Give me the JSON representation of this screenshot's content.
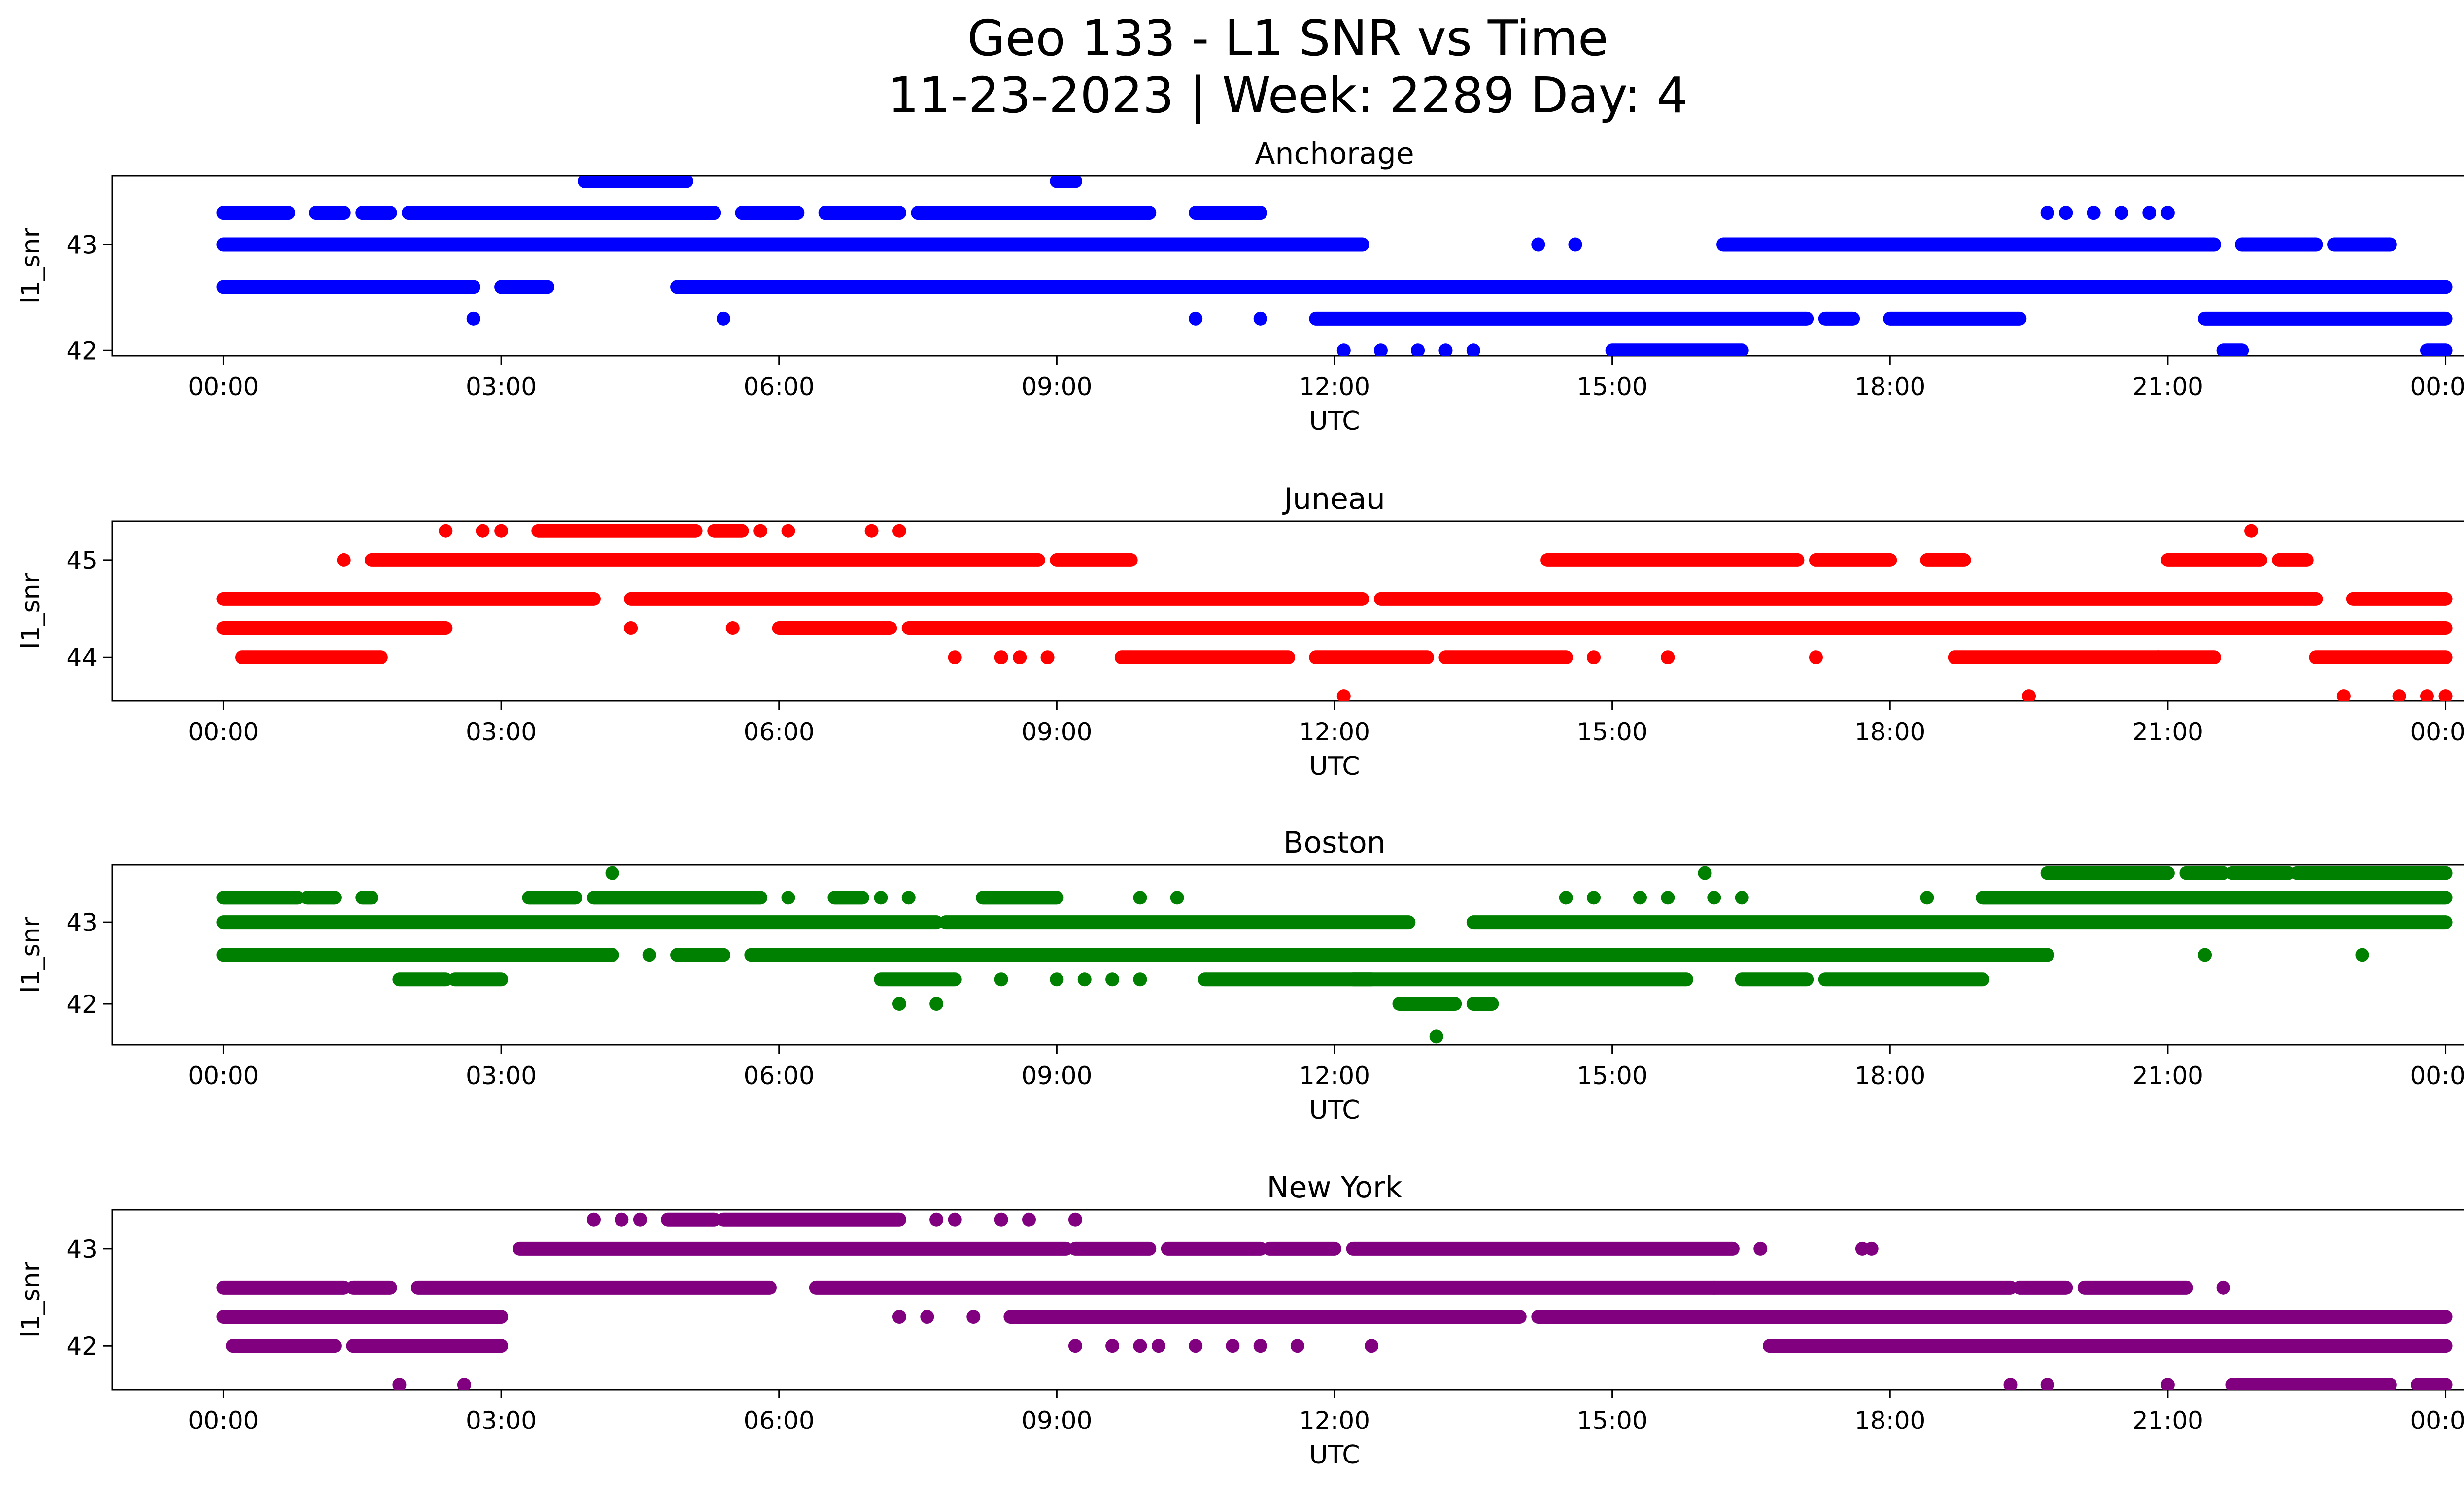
{
  "figure": {
    "title": "Geo 133 - L1 SNR vs Time",
    "subtitle": "11-23-2023 | Week: 2289 Day: 4"
  },
  "chart_data": [
    {
      "type": "scatter",
      "title": "Anchorage",
      "xlabel": "UTC",
      "ylabel": "l1_snr",
      "color": "#0000ff",
      "x_ticks": [
        "00:00",
        "03:00",
        "06:00",
        "09:00",
        "12:00",
        "15:00",
        "18:00",
        "21:00",
        "00:00"
      ],
      "y_ticks": [
        42,
        43
      ],
      "xlim_hours": [
        -1.2,
        25.2
      ],
      "ylim": [
        41.95,
        43.65
      ],
      "levels": [
        {
          "y": 43.3,
          "segments": [
            [
              0,
              0.7
            ],
            [
              1.0,
              1.3
            ],
            [
              1.5,
              1.8
            ],
            [
              2.0,
              5.3
            ],
            [
              5.6,
              6.2
            ],
            [
              6.5,
              7.3
            ],
            [
              7.5,
              10.0
            ],
            [
              10.5,
              11.2
            ]
          ]
        },
        {
          "y": 43.0,
          "segments": [
            [
              0,
              12.3
            ],
            [
              16.2,
              21.5
            ],
            [
              21.8,
              22.6
            ],
            [
              22.8,
              23.4
            ]
          ]
        },
        {
          "y": 42.6,
          "segments": [
            [
              0,
              2.7
            ],
            [
              3.0,
              3.5
            ],
            [
              4.9,
              24.0
            ]
          ]
        },
        {
          "y": 42.3,
          "segments": [
            [
              11.8,
              17.1
            ],
            [
              17.3,
              17.6
            ],
            [
              18.0,
              19.4
            ],
            [
              21.4,
              24.0
            ]
          ]
        },
        {
          "y": 42.0,
          "segments": [
            [
              15.0,
              16.4
            ],
            [
              21.6,
              21.8
            ],
            [
              23.8,
              24.0
            ]
          ]
        },
        {
          "y": 43.6,
          "segments": [
            [
              3.9,
              5.0
            ],
            [
              9.0,
              9.2
            ]
          ]
        }
      ],
      "points": [
        {
          "x": 2.7,
          "y": 42.3
        },
        {
          "x": 5.4,
          "y": 42.3
        },
        {
          "x": 10.5,
          "y": 42.3
        },
        {
          "x": 11.2,
          "y": 42.3
        },
        {
          "x": 12.1,
          "y": 42.0
        },
        {
          "x": 12.5,
          "y": 42.0
        },
        {
          "x": 12.9,
          "y": 42.0
        },
        {
          "x": 13.2,
          "y": 42.0
        },
        {
          "x": 13.5,
          "y": 42.0
        },
        {
          "x": 14.2,
          "y": 43.0
        },
        {
          "x": 14.6,
          "y": 43.0
        },
        {
          "x": 19.7,
          "y": 43.3
        },
        {
          "x": 19.9,
          "y": 43.3
        },
        {
          "x": 20.2,
          "y": 43.3
        },
        {
          "x": 20.5,
          "y": 43.3
        },
        {
          "x": 20.8,
          "y": 43.3
        },
        {
          "x": 21.0,
          "y": 43.3
        }
      ]
    },
    {
      "type": "scatter",
      "title": "Juneau",
      "xlabel": "UTC",
      "ylabel": "l1_snr",
      "color": "#ff0000",
      "x_ticks": [
        "00:00",
        "03:00",
        "06:00",
        "09:00",
        "12:00",
        "15:00",
        "18:00",
        "21:00",
        "00:00"
      ],
      "y_ticks": [
        44,
        45
      ],
      "xlim_hours": [
        -1.2,
        25.2
      ],
      "ylim": [
        43.55,
        45.4
      ],
      "levels": [
        {
          "y": 44.6,
          "segments": [
            [
              0,
              4.0
            ],
            [
              4.4,
              12.3
            ],
            [
              12.5,
              22.6
            ],
            [
              23.0,
              24.0
            ]
          ]
        },
        {
          "y": 44.3,
          "segments": [
            [
              0,
              2.4
            ],
            [
              6.0,
              7.2
            ],
            [
              7.4,
              24.0
            ]
          ]
        },
        {
          "y": 45.0,
          "segments": [
            [
              1.6,
              8.8
            ],
            [
              9.0,
              9.8
            ],
            [
              14.3,
              17.0
            ],
            [
              17.2,
              18.0
            ],
            [
              18.4,
              18.8
            ],
            [
              21.0,
              22.0
            ],
            [
              22.2,
              22.5
            ]
          ]
        },
        {
          "y": 44.0,
          "segments": [
            [
              0.2,
              1.7
            ],
            [
              9.7,
              11.5
            ],
            [
              11.8,
              13.0
            ],
            [
              13.2,
              14.5
            ],
            [
              18.7,
              20.9
            ],
            [
              20.9,
              21.5
            ],
            [
              22.6,
              24.0
            ]
          ]
        },
        {
          "y": 45.3,
          "segments": [
            [
              3.4,
              5.1
            ],
            [
              5.3,
              5.6
            ]
          ]
        }
      ],
      "points": [
        {
          "x": 1.3,
          "y": 45.0
        },
        {
          "x": 2.4,
          "y": 45.3
        },
        {
          "x": 2.8,
          "y": 45.3
        },
        {
          "x": 3.0,
          "y": 45.3
        },
        {
          "x": 5.8,
          "y": 45.3
        },
        {
          "x": 6.1,
          "y": 45.3
        },
        {
          "x": 7.0,
          "y": 45.3
        },
        {
          "x": 7.3,
          "y": 45.3
        },
        {
          "x": 4.4,
          "y": 44.3
        },
        {
          "x": 5.5,
          "y": 44.3
        },
        {
          "x": 7.9,
          "y": 44.0
        },
        {
          "x": 8.4,
          "y": 44.0
        },
        {
          "x": 8.6,
          "y": 44.0
        },
        {
          "x": 8.9,
          "y": 44.0
        },
        {
          "x": 12.1,
          "y": 43.6
        },
        {
          "x": 14.8,
          "y": 44.0
        },
        {
          "x": 15.6,
          "y": 44.0
        },
        {
          "x": 17.2,
          "y": 44.0
        },
        {
          "x": 19.5,
          "y": 43.6
        },
        {
          "x": 21.9,
          "y": 45.3
        },
        {
          "x": 22.9,
          "y": 43.6
        },
        {
          "x": 23.5,
          "y": 43.6
        },
        {
          "x": 23.8,
          "y": 43.6
        },
        {
          "x": 24.0,
          "y": 43.6
        }
      ]
    },
    {
      "type": "scatter",
      "title": "Boston",
      "xlabel": "UTC",
      "ylabel": "l1_snr",
      "color": "#008000",
      "x_ticks": [
        "00:00",
        "03:00",
        "06:00",
        "09:00",
        "12:00",
        "15:00",
        "18:00",
        "21:00",
        "00:00"
      ],
      "y_ticks": [
        42,
        43
      ],
      "xlim_hours": [
        -1.2,
        25.2
      ],
      "ylim": [
        41.5,
        43.7
      ],
      "levels": [
        {
          "y": 43.3,
          "segments": [
            [
              0,
              0.8
            ],
            [
              0.9,
              1.2
            ],
            [
              1.5,
              1.6
            ],
            [
              3.3,
              3.8
            ],
            [
              4.0,
              5.8
            ],
            [
              6.6,
              6.9
            ],
            [
              8.2,
              9.0
            ],
            [
              19.0,
              24.0
            ]
          ]
        },
        {
          "y": 43.0,
          "segments": [
            [
              0,
              7.7
            ],
            [
              7.8,
              12.8
            ],
            [
              13.5,
              24.0
            ]
          ]
        },
        {
          "y": 42.6,
          "segments": [
            [
              0,
              4.2
            ],
            [
              4.9,
              5.4
            ],
            [
              5.7,
              19.7
            ]
          ]
        },
        {
          "y": 42.3,
          "segments": [
            [
              1.9,
              2.4
            ],
            [
              2.5,
              3.0
            ],
            [
              7.1,
              7.9
            ],
            [
              10.6,
              12.4
            ],
            [
              12.2,
              15.8
            ],
            [
              16.4,
              17.1
            ],
            [
              17.3,
              19.0
            ]
          ]
        },
        {
          "y": 43.6,
          "segments": [
            [
              19.7,
              21.0
            ],
            [
              21.2,
              21.6
            ],
            [
              21.7,
              22.3
            ],
            [
              22.4,
              24.0
            ]
          ]
        },
        {
          "y": 42.0,
          "segments": [
            [
              12.7,
              13.3
            ],
            [
              13.5,
              13.7
            ]
          ]
        }
      ],
      "points": [
        {
          "x": 4.2,
          "y": 43.6
        },
        {
          "x": 6.1,
          "y": 43.3
        },
        {
          "x": 7.1,
          "y": 43.3
        },
        {
          "x": 7.4,
          "y": 43.3
        },
        {
          "x": 9.9,
          "y": 43.3
        },
        {
          "x": 10.3,
          "y": 43.3
        },
        {
          "x": 4.6,
          "y": 42.6
        },
        {
          "x": 7.3,
          "y": 42.0
        },
        {
          "x": 7.7,
          "y": 42.0
        },
        {
          "x": 8.4,
          "y": 42.3
        },
        {
          "x": 9.0,
          "y": 42.3
        },
        {
          "x": 9.3,
          "y": 42.3
        },
        {
          "x": 9.6,
          "y": 42.3
        },
        {
          "x": 9.9,
          "y": 42.3
        },
        {
          "x": 13.1,
          "y": 41.6
        },
        {
          "x": 14.5,
          "y": 43.3
        },
        {
          "x": 14.8,
          "y": 43.3
        },
        {
          "x": 15.3,
          "y": 43.3
        },
        {
          "x": 15.6,
          "y": 43.3
        },
        {
          "x": 16.0,
          "y": 43.6
        },
        {
          "x": 16.1,
          "y": 43.3
        },
        {
          "x": 16.4,
          "y": 43.3
        },
        {
          "x": 18.4,
          "y": 43.3
        },
        {
          "x": 21.4,
          "y": 42.6
        },
        {
          "x": 23.1,
          "y": 42.6
        }
      ]
    },
    {
      "type": "scatter",
      "title": "New York",
      "xlabel": "UTC",
      "ylabel": "l1_snr",
      "color": "#800080",
      "x_ticks": [
        "00:00",
        "03:00",
        "06:00",
        "09:00",
        "12:00",
        "15:00",
        "18:00",
        "21:00",
        "00:00"
      ],
      "y_ticks": [
        42,
        43
      ],
      "xlim_hours": [
        -1.2,
        25.2
      ],
      "ylim": [
        41.55,
        43.4
      ],
      "levels": [
        {
          "y": 42.6,
          "segments": [
            [
              0,
              1.3
            ],
            [
              1.4,
              1.8
            ],
            [
              2.1,
              5.9
            ],
            [
              6.4,
              19.3
            ],
            [
              19.4,
              19.9
            ],
            [
              20.1,
              21.2
            ]
          ]
        },
        {
          "y": 42.3,
          "segments": [
            [
              0,
              3.0
            ],
            [
              8.5,
              14.0
            ],
            [
              14.2,
              24.0
            ]
          ]
        },
        {
          "y": 43.0,
          "segments": [
            [
              3.2,
              9.1
            ],
            [
              9.2,
              10.0
            ],
            [
              10.2,
              11.2
            ],
            [
              11.3,
              12.0
            ],
            [
              12.2,
              16.3
            ]
          ]
        },
        {
          "y": 42.0,
          "segments": [
            [
              0.1,
              1.2
            ],
            [
              1.4,
              3.0
            ],
            [
              16.7,
              24.0
            ]
          ]
        },
        {
          "y": 43.3,
          "segments": [
            [
              4.8,
              5.3
            ],
            [
              5.4,
              7.3
            ]
          ]
        },
        {
          "y": 41.6,
          "segments": [
            [
              21.7,
              23.4
            ],
            [
              23.7,
              24.0
            ]
          ]
        }
      ],
      "points": [
        {
          "x": 1.9,
          "y": 41.6
        },
        {
          "x": 2.6,
          "y": 41.6
        },
        {
          "x": 4.0,
          "y": 43.3
        },
        {
          "x": 4.3,
          "y": 43.3
        },
        {
          "x": 4.5,
          "y": 43.3
        },
        {
          "x": 7.7,
          "y": 43.3
        },
        {
          "x": 7.9,
          "y": 43.3
        },
        {
          "x": 8.4,
          "y": 43.3
        },
        {
          "x": 8.7,
          "y": 43.3
        },
        {
          "x": 9.2,
          "y": 43.3
        },
        {
          "x": 7.3,
          "y": 42.3
        },
        {
          "x": 7.6,
          "y": 42.3
        },
        {
          "x": 8.1,
          "y": 42.3
        },
        {
          "x": 9.2,
          "y": 42.0
        },
        {
          "x": 9.6,
          "y": 42.0
        },
        {
          "x": 9.9,
          "y": 42.0
        },
        {
          "x": 10.1,
          "y": 42.0
        },
        {
          "x": 10.5,
          "y": 42.0
        },
        {
          "x": 10.9,
          "y": 42.0
        },
        {
          "x": 11.2,
          "y": 42.0
        },
        {
          "x": 11.6,
          "y": 42.0
        },
        {
          "x": 12.4,
          "y": 42.0
        },
        {
          "x": 16.6,
          "y": 43.0
        },
        {
          "x": 17.7,
          "y": 43.0
        },
        {
          "x": 17.8,
          "y": 43.0
        },
        {
          "x": 19.3,
          "y": 41.6
        },
        {
          "x": 19.7,
          "y": 41.6
        },
        {
          "x": 21.0,
          "y": 41.6
        },
        {
          "x": 21.6,
          "y": 42.6
        },
        {
          "x": 16.1,
          "y": 42.6
        }
      ]
    }
  ]
}
